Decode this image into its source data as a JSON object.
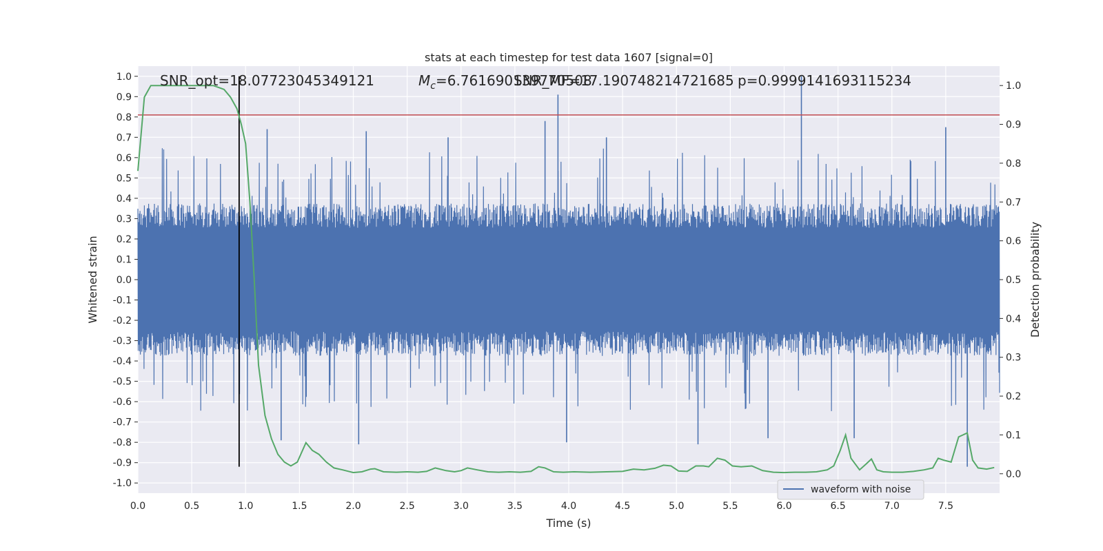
{
  "chart_data": {
    "type": "line",
    "title": "stats at each timestep for test data 1607 [signal=0]",
    "xlabel": "Time (s)",
    "ylabel_left": "Whitened strain",
    "ylabel_right": "Detection probability",
    "xlim": [
      0.0,
      8.0
    ],
    "ylim_left": [
      -1.05,
      1.05
    ],
    "ylim_right": [
      -0.05,
      1.05
    ],
    "x_ticks": [
      "0.0",
      "0.5",
      "1.0",
      "1.5",
      "2.0",
      "2.5",
      "3.0",
      "3.5",
      "4.0",
      "4.5",
      "5.0",
      "5.5",
      "6.0",
      "6.5",
      "7.0",
      "7.5"
    ],
    "y_left_ticks": [
      "1.0",
      "0.9",
      "0.8",
      "0.7",
      "0.6",
      "0.5",
      "0.4",
      "0.3",
      "0.2",
      "0.1",
      "0.0",
      "-0.1",
      "-0.2",
      "-0.3",
      "-0.4",
      "-0.5",
      "-0.6",
      "-0.7",
      "-0.8",
      "-0.9",
      "-1.0"
    ],
    "y_right_ticks": [
      "1.0",
      "0.9",
      "0.8",
      "0.7",
      "0.6",
      "0.5",
      "0.4",
      "0.3",
      "0.2",
      "0.1",
      "0.0"
    ],
    "grid": true,
    "legend": {
      "placement": "lower-right",
      "entries": [
        {
          "label": "waveform with noise",
          "color": "#4c72b0"
        }
      ]
    },
    "annotations": {
      "snr_opt": "SNR_opt=18.07723045349121",
      "mc": "=6.761690139770508",
      "mc_symbol": "M",
      "mc_sub": "c",
      "snr_mf": "SNR_MF=17.190748214721685",
      "pmax": "p=0.9999141693115234"
    },
    "threshold_line": {
      "y_left": 0.81,
      "color": "#c44e52"
    },
    "marker_line": {
      "x": 0.94,
      "y_left_from": -0.92,
      "y_left_to": 1.0,
      "color": "#000000"
    },
    "strain_series": {
      "name": "waveform with noise",
      "color": "#4c72b0",
      "core_amplitude": 0.3,
      "spikes": [
        {
          "x": 3.9,
          "y": 0.91
        },
        {
          "x": 3.78,
          "y": 0.78
        },
        {
          "x": 6.16,
          "y": 1.0
        },
        {
          "x": 1.2,
          "y": 0.74
        },
        {
          "x": 2.12,
          "y": 0.73
        },
        {
          "x": 7.5,
          "y": 0.75
        },
        {
          "x": 7.7,
          "y": -0.92
        },
        {
          "x": 3.98,
          "y": -0.8
        },
        {
          "x": 2.05,
          "y": -0.81
        },
        {
          "x": 6.65,
          "y": -0.78
        },
        {
          "x": 5.2,
          "y": -0.81
        },
        {
          "x": 1.33,
          "y": -0.79
        },
        {
          "x": 5.85,
          "y": -0.78
        },
        {
          "x": 4.35,
          "y": 0.7
        },
        {
          "x": 2.88,
          "y": 0.7
        }
      ]
    },
    "probability_series": {
      "name": "detection probability",
      "color": "#55a868",
      "x": [
        0.0,
        0.06,
        0.12,
        0.2,
        0.3,
        0.4,
        0.5,
        0.6,
        0.7,
        0.8,
        0.86,
        0.92,
        0.96,
        1.0,
        1.04,
        1.08,
        1.12,
        1.18,
        1.24,
        1.3,
        1.36,
        1.42,
        1.48,
        1.56,
        1.62,
        1.68,
        1.75,
        1.82,
        1.9,
        2.0,
        2.08,
        2.16,
        2.2,
        2.28,
        2.4,
        2.5,
        2.6,
        2.68,
        2.76,
        2.86,
        2.94,
        3.0,
        3.06,
        3.15,
        3.25,
        3.35,
        3.45,
        3.55,
        3.65,
        3.72,
        3.78,
        3.86,
        3.95,
        4.05,
        4.2,
        4.35,
        4.5,
        4.6,
        4.7,
        4.8,
        4.88,
        4.95,
        5.02,
        5.1,
        5.18,
        5.25,
        5.3,
        5.38,
        5.45,
        5.52,
        5.6,
        5.7,
        5.8,
        5.9,
        6.0,
        6.1,
        6.2,
        6.3,
        6.4,
        6.46,
        6.52,
        6.57,
        6.62,
        6.7,
        6.76,
        6.81,
        6.86,
        6.92,
        7.0,
        7.1,
        7.2,
        7.3,
        7.38,
        7.43,
        7.48,
        7.55,
        7.62,
        7.7,
        7.75,
        7.8,
        7.88,
        7.95
      ],
      "y": [
        0.78,
        0.97,
        1.0,
        1.0,
        1.0,
        1.0,
        1.0,
        1.0,
        1.0,
        0.99,
        0.97,
        0.94,
        0.9,
        0.85,
        0.7,
        0.5,
        0.28,
        0.15,
        0.09,
        0.05,
        0.03,
        0.02,
        0.03,
        0.08,
        0.06,
        0.05,
        0.03,
        0.015,
        0.01,
        0.003,
        0.005,
        0.012,
        0.013,
        0.005,
        0.004,
        0.005,
        0.004,
        0.006,
        0.015,
        0.008,
        0.005,
        0.008,
        0.015,
        0.01,
        0.005,
        0.004,
        0.005,
        0.004,
        0.006,
        0.018,
        0.015,
        0.005,
        0.004,
        0.005,
        0.004,
        0.005,
        0.006,
        0.012,
        0.01,
        0.014,
        0.022,
        0.02,
        0.007,
        0.006,
        0.02,
        0.02,
        0.018,
        0.04,
        0.035,
        0.02,
        0.018,
        0.02,
        0.008,
        0.004,
        0.003,
        0.004,
        0.004,
        0.005,
        0.01,
        0.02,
        0.06,
        0.1,
        0.04,
        0.01,
        0.025,
        0.038,
        0.01,
        0.005,
        0.004,
        0.004,
        0.006,
        0.01,
        0.015,
        0.04,
        0.035,
        0.03,
        0.095,
        0.105,
        0.035,
        0.015,
        0.012,
        0.016
      ]
    }
  }
}
